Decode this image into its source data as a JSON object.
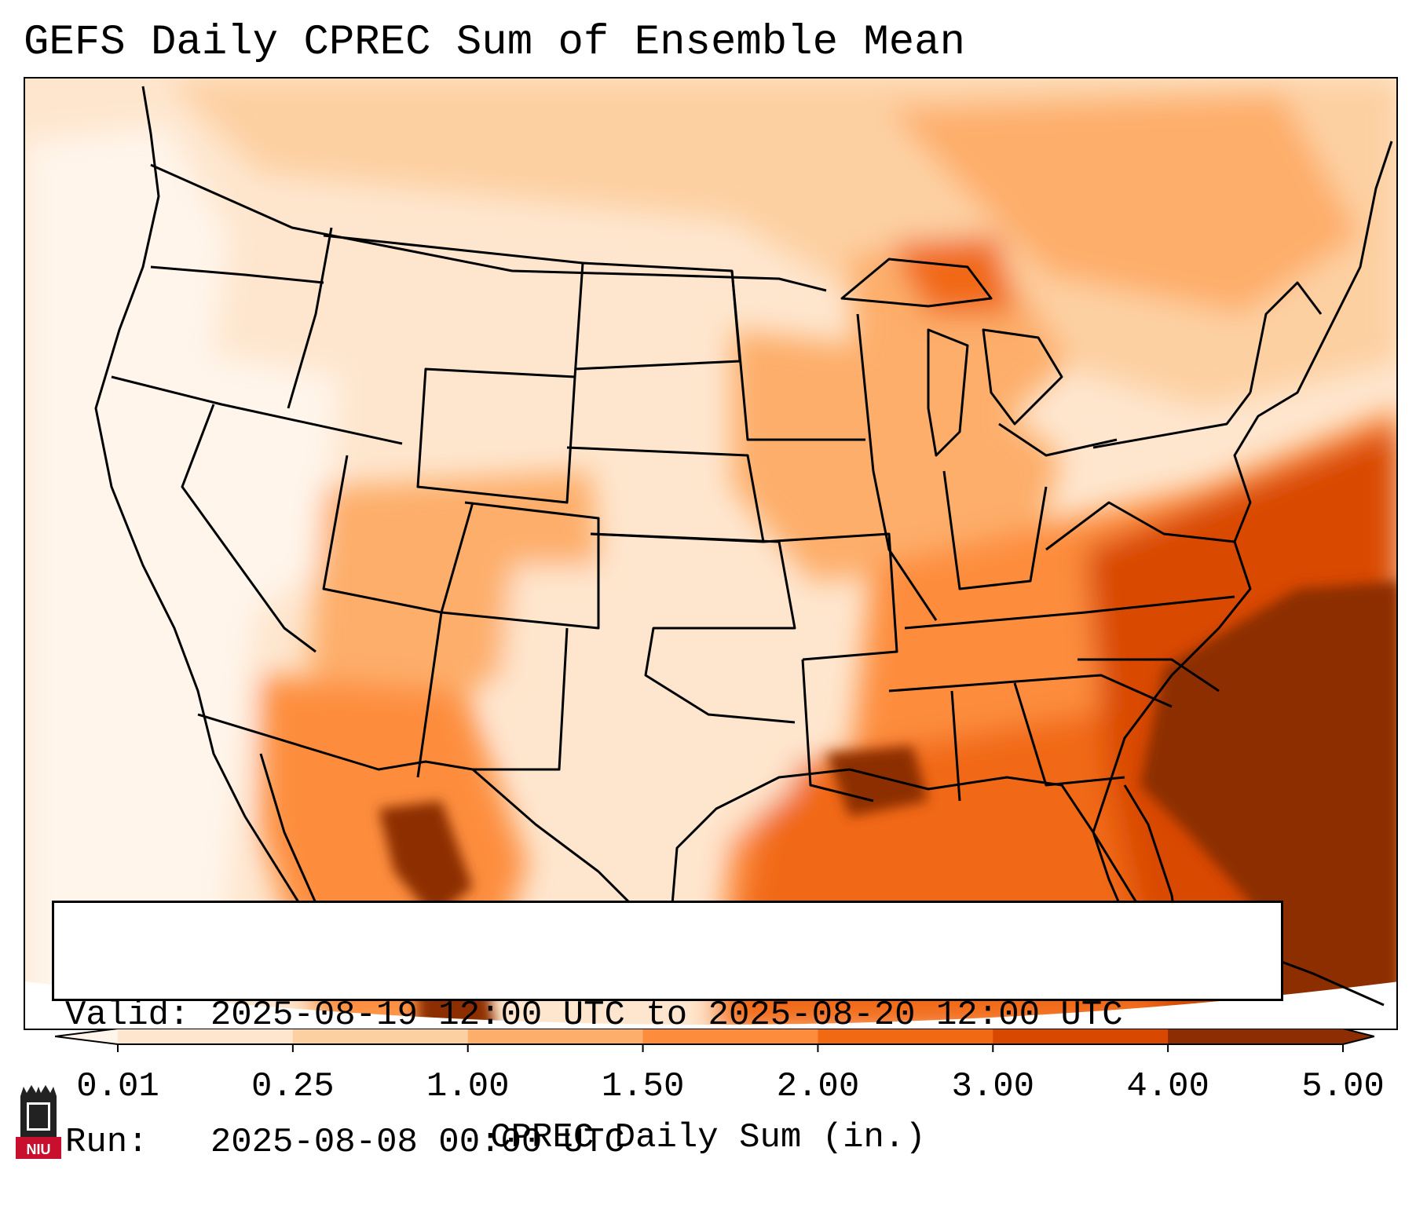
{
  "title": "GEFS Daily CPREC Sum of Ensemble Mean",
  "info": {
    "valid_label": "Valid:",
    "valid_value": "2025-08-19 12:00 UTC to 2025-08-20 12:00 UTC",
    "run_label": "Run:",
    "run_value": "2025-08-08 00:00 UTC"
  },
  "colorbar": {
    "label": "CPREC Daily Sum (in.)",
    "ticks": [
      "0.01",
      "0.25",
      "1.00",
      "1.50",
      "2.00",
      "3.00",
      "4.00",
      "5.00"
    ],
    "colors": [
      "#fff5eb",
      "#fee6ce",
      "#fdd0a2",
      "#fdae6b",
      "#fd8d3c",
      "#f16913",
      "#d94801",
      "#8c2d04"
    ]
  },
  "logo": {
    "text": "NIU"
  },
  "colors": {
    "state_border": "#000000",
    "heavy_precip": "#8c2d04"
  }
}
